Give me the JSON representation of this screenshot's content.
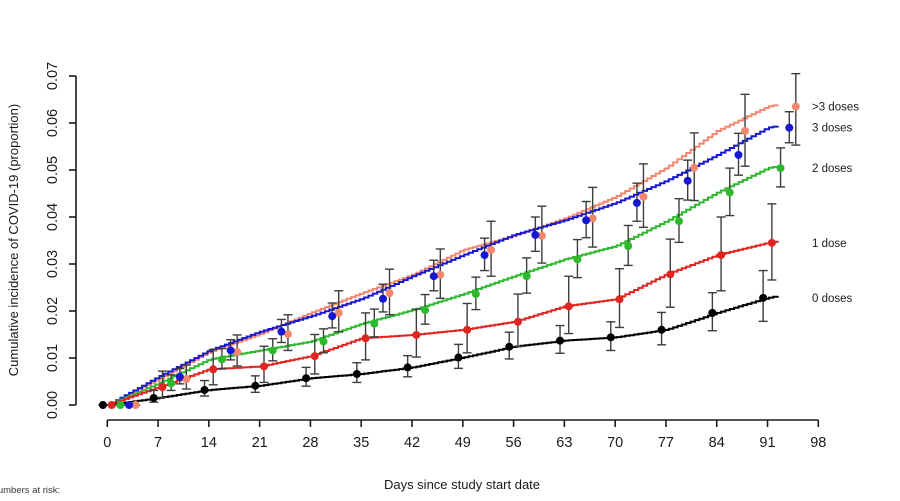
{
  "figure": {
    "footer_partial": "Numbers at risk:"
  },
  "chart_data": {
    "type": "line",
    "subtype": "step-cumulative-incidence",
    "title": "",
    "xlabel": "Days since study start date",
    "ylabel": "Cumulative incidence of COVID-19 (proportion)",
    "xlim": [
      0,
      98
    ],
    "ylim": [
      0.0,
      0.07
    ],
    "x_ticks": [
      0,
      7,
      14,
      21,
      28,
      35,
      42,
      49,
      56,
      63,
      70,
      77,
      84,
      91,
      98
    ],
    "y_ticks": [
      0.0,
      0.01,
      0.02,
      0.03,
      0.04,
      0.05,
      0.06,
      0.07
    ],
    "grid": false,
    "legend_position": "right-margin",
    "errorbar_color": "#3d3d3d",
    "marker_days": [
      0,
      7,
      14,
      21,
      28,
      35,
      42,
      49,
      56,
      63,
      70,
      77,
      84,
      91
    ],
    "series": [
      {
        "name": ">3 doses",
        "color": "#f2876e",
        "marker_day_offset": 3.9,
        "values": [
          0,
          0.0055,
          0.0113,
          0.0151,
          0.0196,
          0.0238,
          0.0277,
          0.033,
          0.036,
          0.0397,
          0.0443,
          0.0505,
          0.0583,
          0.0635
        ],
        "ci_lo": [
          0,
          0.0034,
          0.0083,
          0.0116,
          0.0156,
          0.0192,
          0.0227,
          0.0274,
          0.0302,
          0.0336,
          0.0378,
          0.0435,
          0.0508,
          0.0553
        ],
        "ci_hi": [
          0,
          0.0085,
          0.0149,
          0.0192,
          0.0243,
          0.0289,
          0.0332,
          0.0391,
          0.0423,
          0.0463,
          0.0513,
          0.0579,
          0.0661,
          0.0705
        ]
      },
      {
        "name": "3 doses",
        "color": "#1717d1",
        "marker_day_offset": 3.0,
        "values": [
          0,
          0.006,
          0.0116,
          0.0156,
          0.0189,
          0.0226,
          0.0274,
          0.0319,
          0.0362,
          0.0393,
          0.043,
          0.0477,
          0.0532,
          0.059
        ],
        "ci_lo": [
          0,
          0.0045,
          0.0096,
          0.0133,
          0.0164,
          0.0198,
          0.0243,
          0.0286,
          0.0327,
          0.0356,
          0.0391,
          0.0436,
          0.0489,
          0.0558
        ],
        "ci_hi": [
          0,
          0.0078,
          0.0139,
          0.0182,
          0.0217,
          0.0257,
          0.0308,
          0.0355,
          0.04,
          0.0433,
          0.0472,
          0.0521,
          0.0578,
          0.0624
        ]
      },
      {
        "name": "2 doses",
        "color": "#2eb82e",
        "marker_day_offset": 1.8,
        "values": [
          0,
          0.0046,
          0.0097,
          0.0116,
          0.0135,
          0.0173,
          0.0202,
          0.0236,
          0.0274,
          0.031,
          0.0338,
          0.0391,
          0.0452,
          0.0504
        ],
        "ci_lo": [
          0,
          0.0031,
          0.0077,
          0.0094,
          0.0111,
          0.0145,
          0.0172,
          0.0203,
          0.0238,
          0.0271,
          0.0297,
          0.0346,
          0.0403,
          0.0464
        ],
        "ci_hi": [
          0,
          0.0064,
          0.012,
          0.0141,
          0.0162,
          0.0204,
          0.0235,
          0.0272,
          0.0313,
          0.0352,
          0.0382,
          0.0439,
          0.0504,
          0.0547
        ]
      },
      {
        "name": "1 dose",
        "color": "#e02420",
        "marker_day_offset": 0.6,
        "values": [
          0,
          0.0038,
          0.0076,
          0.0082,
          0.0104,
          0.0142,
          0.0149,
          0.016,
          0.0177,
          0.021,
          0.0225,
          0.0278,
          0.0319,
          0.0345
        ],
        "ci_lo": [
          0,
          0.0016,
          0.0043,
          0.0048,
          0.0066,
          0.0096,
          0.0102,
          0.0111,
          0.0125,
          0.0152,
          0.0165,
          0.0208,
          0.0243,
          0.0266
        ],
        "ci_hi": [
          0,
          0.0072,
          0.0118,
          0.0125,
          0.015,
          0.0196,
          0.0204,
          0.0216,
          0.0236,
          0.0274,
          0.029,
          0.0353,
          0.04,
          0.0428
        ]
      },
      {
        "name": "0 doses",
        "color": "#000000",
        "marker_day_offset": -0.6,
        "values": [
          0,
          0.0015,
          0.0032,
          0.0041,
          0.0057,
          0.0066,
          0.008,
          0.0101,
          0.0124,
          0.0137,
          0.0144,
          0.016,
          0.0196,
          0.0228
        ],
        "ci_lo": [
          0,
          0.0006,
          0.0019,
          0.0027,
          0.004,
          0.0048,
          0.006,
          0.0078,
          0.0098,
          0.011,
          0.0116,
          0.0128,
          0.0158,
          0.0178
        ],
        "ci_hi": [
          0,
          0.0031,
          0.0052,
          0.0062,
          0.008,
          0.009,
          0.0105,
          0.0129,
          0.0155,
          0.0169,
          0.0177,
          0.0197,
          0.0239,
          0.0286
        ]
      }
    ]
  }
}
